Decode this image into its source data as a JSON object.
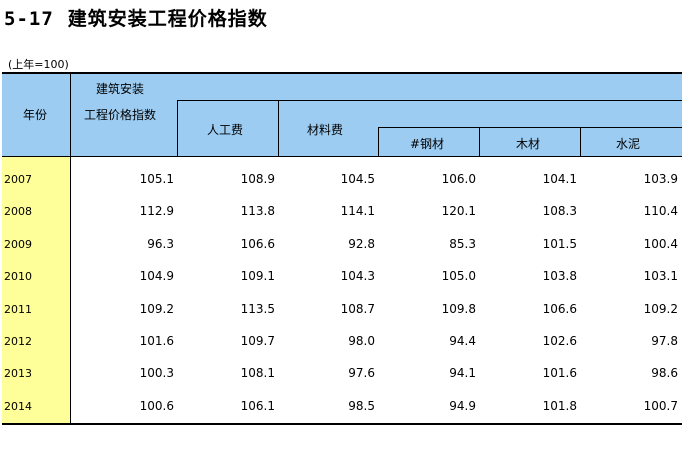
{
  "title": {
    "number": "5-17",
    "text": "建筑安装工程价格指数"
  },
  "base_note": "(上年=100)",
  "headers": {
    "year": "年份",
    "index_line1": "建筑安装",
    "index_line2": "工程价格指数",
    "labor": "人工费",
    "material": "材料费",
    "steel": "#钢材",
    "wood": "木材",
    "cement": "水泥"
  },
  "rows": [
    {
      "year": "2007",
      "values": [
        "105.1",
        "108.9",
        "104.5",
        "106.0",
        "104.1",
        "103.9"
      ]
    },
    {
      "year": "2008",
      "values": [
        "112.9",
        "113.8",
        "114.1",
        "120.1",
        "108.3",
        "110.4"
      ]
    },
    {
      "year": "2009",
      "values": [
        "96.3",
        "106.6",
        "92.8",
        "85.3",
        "101.5",
        "100.4"
      ]
    },
    {
      "year": "2010",
      "values": [
        "104.9",
        "109.1",
        "104.3",
        "105.0",
        "103.8",
        "103.1"
      ]
    },
    {
      "year": "2011",
      "values": [
        "109.2",
        "113.5",
        "108.7",
        "109.8",
        "106.6",
        "109.2"
      ]
    },
    {
      "year": "2012",
      "values": [
        "101.6",
        "109.7",
        "98.0",
        "94.4",
        "102.6",
        "97.8"
      ]
    },
    {
      "year": "2013",
      "values": [
        "100.3",
        "108.1",
        "97.6",
        "94.1",
        "101.6",
        "98.6"
      ]
    },
    {
      "year": "2014",
      "values": [
        "100.6",
        "106.1",
        "98.5",
        "94.9",
        "101.8",
        "100.7"
      ]
    }
  ],
  "colors": {
    "header_bg": "#9dccf2",
    "year_bg": "#ffff99"
  }
}
